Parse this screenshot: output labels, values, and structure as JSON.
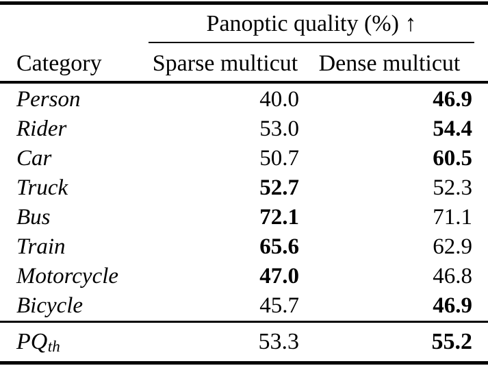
{
  "table": {
    "spanner_header": "Panoptic quality (%) ↑",
    "columns": {
      "category": "Category",
      "sparse": "Sparse multicut",
      "dense": "Dense multicut"
    },
    "rows": [
      {
        "category": "Person",
        "sparse": "40.0",
        "sparse_bold": false,
        "dense": "46.9",
        "dense_bold": true
      },
      {
        "category": "Rider",
        "sparse": "53.0",
        "sparse_bold": false,
        "dense": "54.4",
        "dense_bold": true
      },
      {
        "category": "Car",
        "sparse": "50.7",
        "sparse_bold": false,
        "dense": "60.5",
        "dense_bold": true
      },
      {
        "category": "Truck",
        "sparse": "52.7",
        "sparse_bold": true,
        "dense": "52.3",
        "dense_bold": false
      },
      {
        "category": "Bus",
        "sparse": "72.1",
        "sparse_bold": true,
        "dense": "71.1",
        "dense_bold": false
      },
      {
        "category": "Train",
        "sparse": "65.6",
        "sparse_bold": true,
        "dense": "62.9",
        "dense_bold": false
      },
      {
        "category": "Motorcycle",
        "sparse": "47.0",
        "sparse_bold": true,
        "dense": "46.8",
        "dense_bold": false
      },
      {
        "category": "Bicycle",
        "sparse": "45.7",
        "sparse_bold": false,
        "dense": "46.9",
        "dense_bold": true
      }
    ],
    "footer": {
      "label_base": "PQ",
      "label_sub": "th",
      "sparse": "53.3",
      "sparse_bold": false,
      "dense": "55.2",
      "dense_bold": true
    }
  },
  "colors": {
    "text": "#000000",
    "background": "#ffffff",
    "rule": "#000000"
  }
}
